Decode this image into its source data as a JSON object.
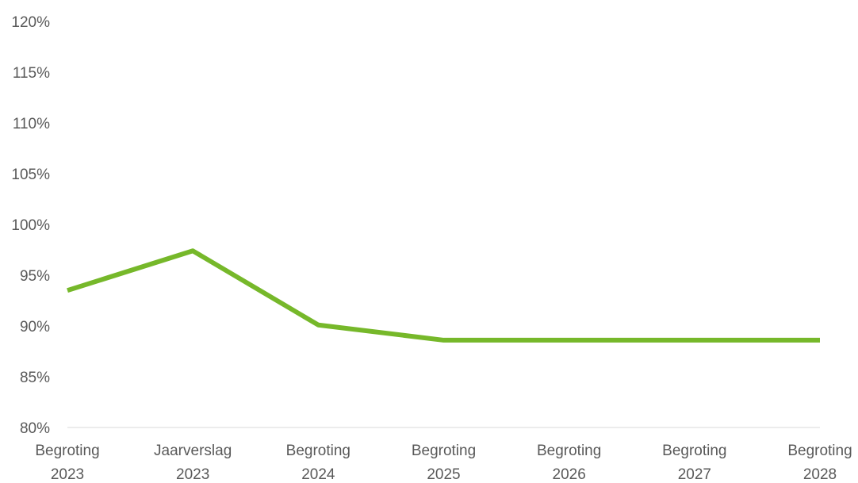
{
  "chart_data": {
    "type": "line",
    "categories": [
      [
        "Begroting",
        "2023"
      ],
      [
        "Jaarverslag",
        "2023"
      ],
      [
        "Begroting",
        "2024"
      ],
      [
        "Begroting",
        "2025"
      ],
      [
        "Begroting",
        "2026"
      ],
      [
        "Begroting",
        "2027"
      ],
      [
        "Begroting",
        "2028"
      ]
    ],
    "series": [
      {
        "values": [
          93.5,
          97.4,
          90.1,
          88.6,
          88.6,
          88.6,
          88.6
        ],
        "color": "#76b82a"
      }
    ],
    "ylim": [
      80,
      120
    ],
    "ytick_step": 5,
    "ytick_labels": [
      "80%",
      "85%",
      "90%",
      "95%",
      "100%",
      "105%",
      "110%",
      "115%",
      "120%"
    ],
    "grid": false,
    "legend": "none",
    "title": "",
    "xlabel": "",
    "ylabel": "",
    "axis_color": "#d9d9d9",
    "text_color": "#595959"
  }
}
